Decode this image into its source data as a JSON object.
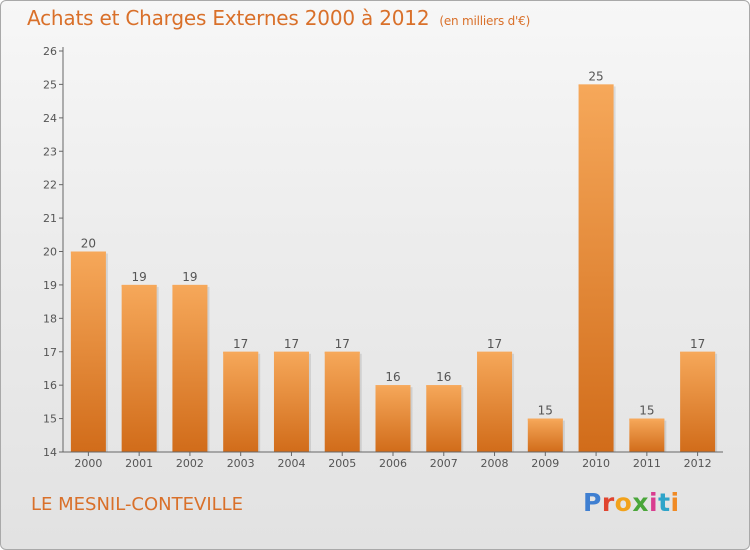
{
  "header": {
    "title": "Achats et Charges Externes 2000 à 2012",
    "subtitle": "(en milliers d'€)"
  },
  "footer": {
    "commune": "LE MESNIL-CONTEVILLE"
  },
  "brand": {
    "logo_text": "Proxiti",
    "letter_colors": [
      "#3f7fd1",
      "#e0442f",
      "#f2a21b",
      "#4aa63a",
      "#d93d8f",
      "#2fa4c9",
      "#f08a24"
    ]
  },
  "chart_data": {
    "type": "bar",
    "title": "Achats et Charges Externes 2000 à 2012",
    "subtitle": "(en milliers d'€)",
    "xlabel": "",
    "ylabel": "",
    "categories": [
      "2000",
      "2001",
      "2002",
      "2003",
      "2004",
      "2005",
      "2006",
      "2007",
      "2008",
      "2009",
      "2010",
      "2011",
      "2012"
    ],
    "values": [
      20,
      19,
      19,
      17,
      17,
      17,
      16,
      16,
      17,
      15,
      25,
      15,
      17
    ],
    "data_labels": [
      "20",
      "19",
      "19",
      "17",
      "17",
      "17",
      "16",
      "16",
      "17",
      "15",
      "25",
      "15",
      "17"
    ],
    "ylim": [
      14,
      26
    ],
    "yticks": [
      14,
      15,
      16,
      17,
      18,
      19,
      20,
      21,
      22,
      23,
      24,
      25,
      26
    ],
    "grid": false,
    "legend": "none",
    "bar_color": "#e8842e",
    "bar_color_light": "#f6a85a",
    "bar_color_dark": "#d16c1a",
    "text_color": "#555555"
  }
}
